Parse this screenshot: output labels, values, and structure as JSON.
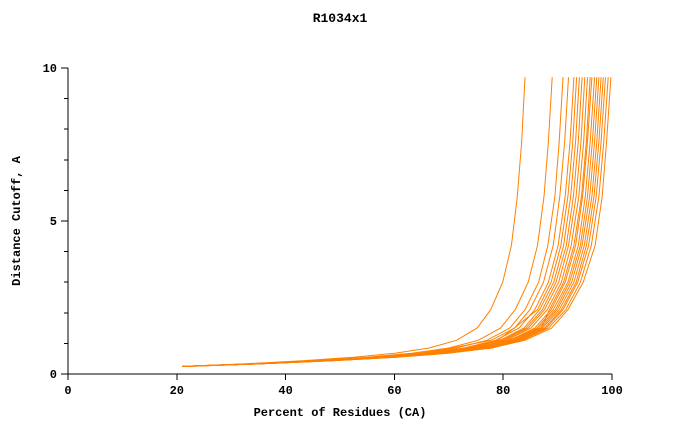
{
  "title": "R1034x1",
  "chart_data": {
    "type": "line",
    "title": "R1034x1",
    "xlabel": "Percent of Residues (CA)",
    "ylabel": "Distance Cutoff, A",
    "xlim": [
      0,
      100
    ],
    "ylim": [
      0,
      10
    ],
    "grid": false,
    "legend": "none",
    "line_color": "#ff8000",
    "x_ticks": [
      0,
      20,
      40,
      60,
      80,
      100
    ],
    "y_ticks_major": [
      0,
      5,
      10
    ],
    "y_ticks_minor": [
      1,
      2,
      3,
      4,
      6,
      7,
      8,
      9
    ],
    "y_levels": [
      0.25,
      0.33,
      0.43,
      0.55,
      0.68,
      0.85,
      1.1,
      1.5,
      2.1,
      3.0,
      4.2,
      5.8,
      7.6,
      9.7
    ],
    "series": [
      {
        "x": [
          21.0,
          32.3,
          43.1,
          52.5,
          60.1,
          66.4,
          71.4,
          75.2,
          77.7,
          79.9,
          81.5,
          82.6,
          83.4,
          84.0
        ]
      },
      {
        "x": [
          21.0,
          33.2,
          44.8,
          55.0,
          63.2,
          70.0,
          75.4,
          79.5,
          82.2,
          84.6,
          86.3,
          87.5,
          88.3,
          89.0
        ]
      },
      {
        "x": [
          21.0,
          33.6,
          45.5,
          56.0,
          64.4,
          71.4,
          77.0,
          81.2,
          84.0,
          86.5,
          88.2,
          89.5,
          90.3,
          91.0
        ]
      },
      {
        "x": [
          21.0,
          33.8,
          45.9,
          56.5,
          65.0,
          70.6,
          77.8,
          82.1,
          84.9,
          87.4,
          89.2,
          90.4,
          91.3,
          92.0
        ]
      },
      {
        "x": [
          21.8,
          34.0,
          46.2,
          57.0,
          65.6,
          72.8,
          78.6,
          82.9,
          85.8,
          88.3,
          90.1,
          91.4,
          92.3,
          93.0
        ]
      },
      {
        "x": [
          21.0,
          34.1,
          46.4,
          57.3,
          66.0,
          73.2,
          79.0,
          82.0,
          86.3,
          88.8,
          90.6,
          91.9,
          92.8,
          93.5
        ]
      },
      {
        "x": [
          21.0,
          34.1,
          46.6,
          57.5,
          66.3,
          73.6,
          79.4,
          83.8,
          86.7,
          89.3,
          91.1,
          92.4,
          93.3,
          94.0
        ]
      },
      {
        "x": [
          21.0,
          34.2,
          46.7,
          57.8,
          66.6,
          73.9,
          79.8,
          84.2,
          87.2,
          89.7,
          91.6,
          92.9,
          93.8,
          94.5
        ]
      },
      {
        "x": [
          21.0,
          34.3,
          46.9,
          58.0,
          66.9,
          76.0,
          80.2,
          84.6,
          87.6,
          90.2,
          92.0,
          93.4,
          94.3,
          95.0
        ]
      },
      {
        "x": [
          22.3,
          34.4,
          47.1,
          58.3,
          67.2,
          74.6,
          80.6,
          85.1,
          88.1,
          90.7,
          92.5,
          93.9,
          94.8,
          95.5
        ]
      },
      {
        "x": [
          21.0,
          34.5,
          47.3,
          58.5,
          67.5,
          75.0,
          81.0,
          87.0,
          88.5,
          91.1,
          93.0,
          94.4,
          95.3,
          96.0
        ]
      },
      {
        "x": [
          21.0,
          34.6,
          47.4,
          58.7,
          67.7,
          75.2,
          81.2,
          85.8,
          88.8,
          91.4,
          93.3,
          94.6,
          95.5,
          96.3
        ]
      },
      {
        "x": [
          21.0,
          34.6,
          47.5,
          58.9,
          68.0,
          74.2,
          81.6,
          86.2,
          89.2,
          91.9,
          93.8,
          95.1,
          96.0,
          96.8
        ]
      },
      {
        "x": [
          21.0,
          34.7,
          47.7,
          59.1,
          68.2,
          75.9,
          82.0,
          86.5,
          89.6,
          92.2,
          94.2,
          95.5,
          96.4,
          97.2
        ]
      },
      {
        "x": [
          21.5,
          34.8,
          47.8,
          59.3,
          68.5,
          76.2,
          82.3,
          86.9,
          89.9,
          92.6,
          94.5,
          95.9,
          96.8,
          97.6
        ]
      },
      {
        "x": [
          21.0,
          34.9,
          48.0,
          59.5,
          68.7,
          78.0,
          82.6,
          87.2,
          90.3,
          93.0,
          94.9,
          96.3,
          97.2,
          98.0
        ]
      },
      {
        "x": [
          21.0,
          34.9,
          48.1,
          59.7,
          69.0,
          76.7,
          82.9,
          87.6,
          90.7,
          93.4,
          95.3,
          96.7,
          97.6,
          98.4
        ]
      },
      {
        "x": [
          21.0,
          35.0,
          48.2,
          59.9,
          69.2,
          77.0,
          83.2,
          87.9,
          91.0,
          93.7,
          95.7,
          97.1,
          98.0,
          98.8
        ]
      },
      {
        "x": [
          21.0,
          35.1,
          48.4,
          60.2,
          69.5,
          77.4,
          83.6,
          88.3,
          91.5,
          94.2,
          96.2,
          97.6,
          98.5,
          99.3
        ]
      },
      {
        "x": [
          22.0,
          35.2,
          48.6,
          60.4,
          69.9,
          77.8,
          84.0,
          88.9,
          91.9,
          94.7,
          96.9,
          98.2,
          99.0,
          99.8
        ]
      }
    ]
  }
}
